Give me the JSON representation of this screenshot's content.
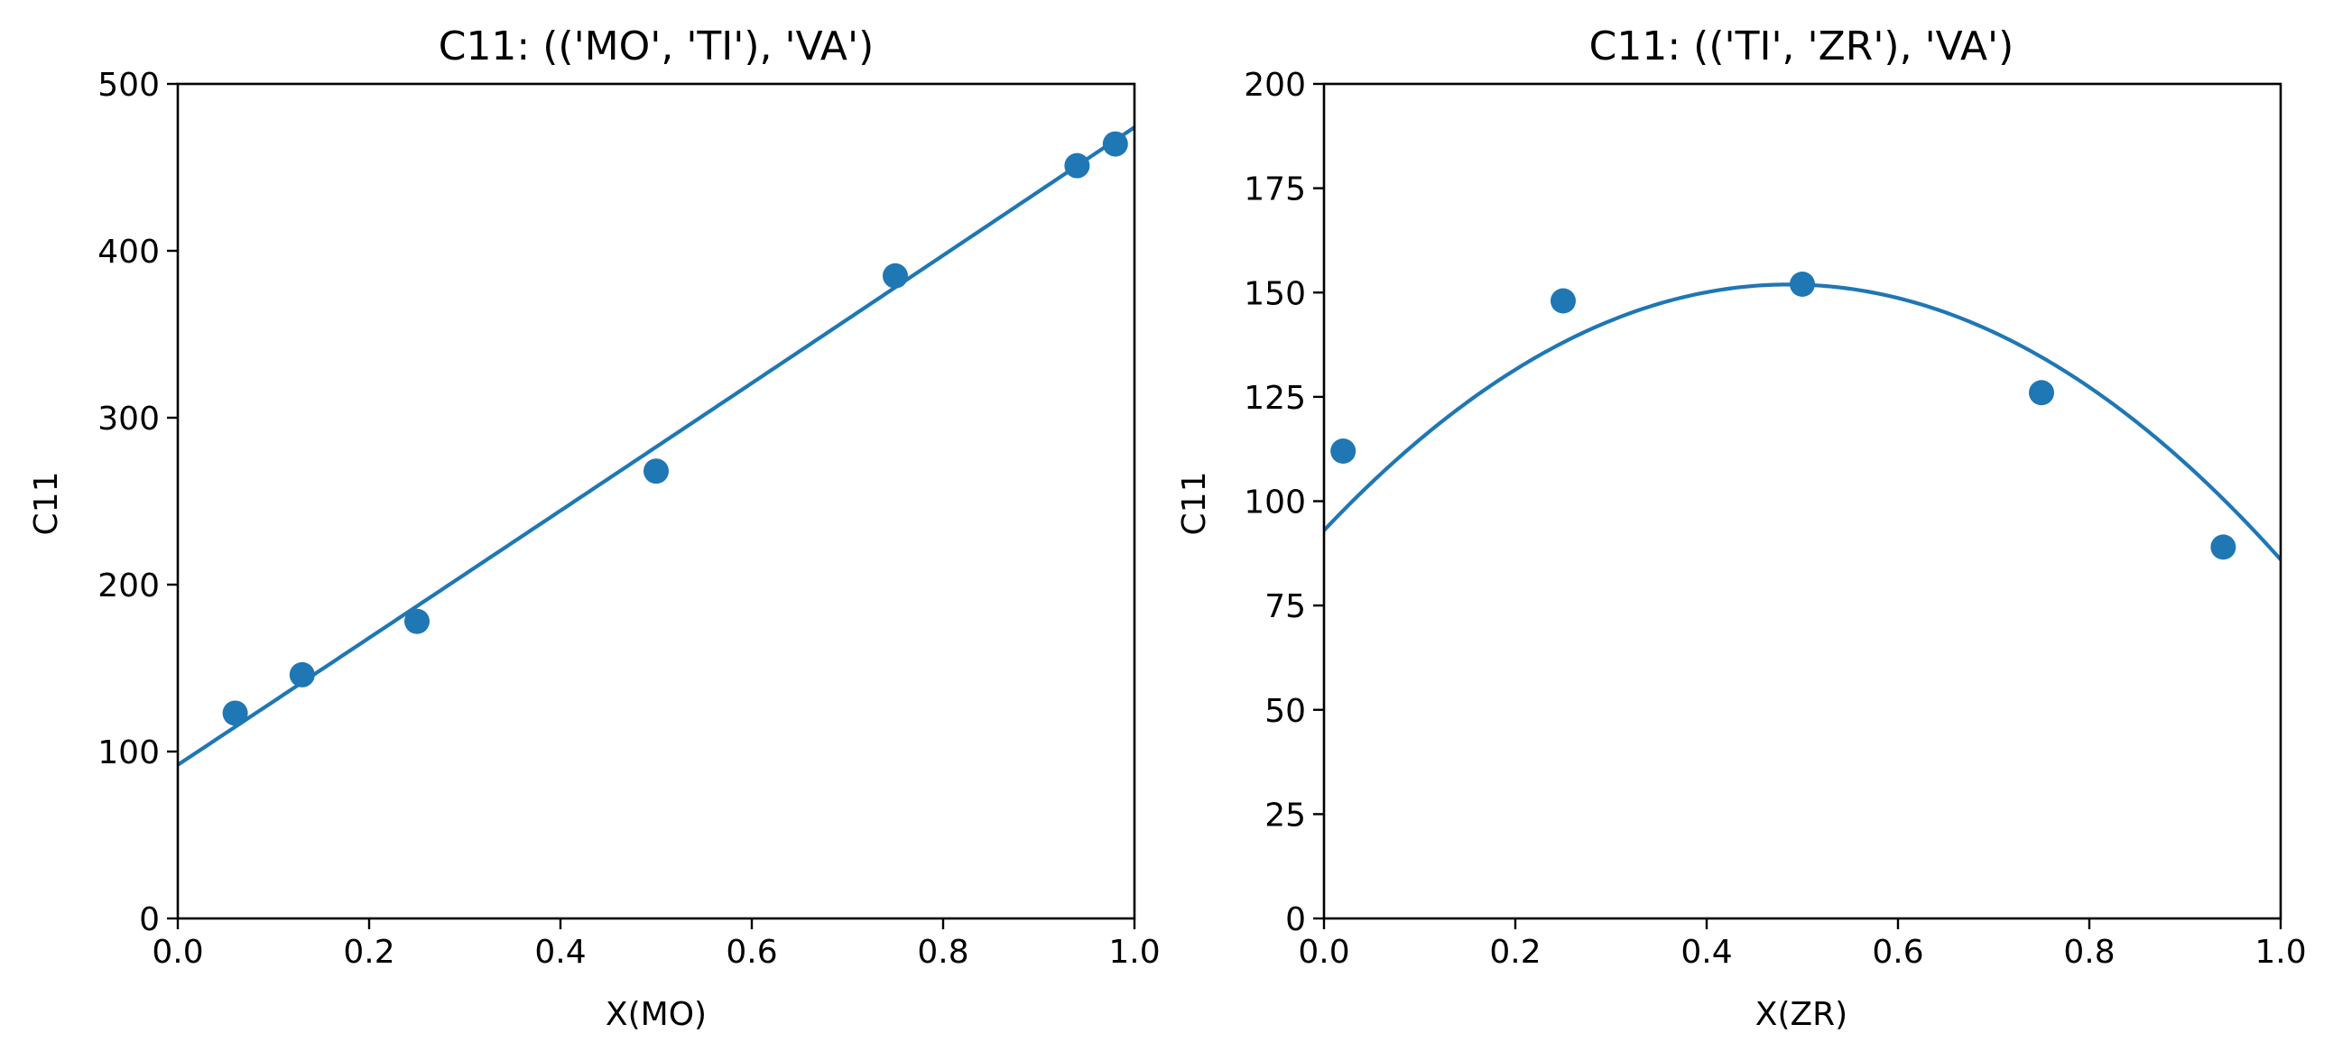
{
  "chart_data": [
    {
      "type": "scatter",
      "title": "C11: (('MO', 'TI'), 'VA')",
      "xlabel": "X(MO)",
      "ylabel": "C11",
      "xlim": [
        0.0,
        1.0
      ],
      "ylim": [
        0,
        500
      ],
      "xticks": [
        "0.0",
        "0.2",
        "0.4",
        "0.6",
        "0.8",
        "1.0"
      ],
      "yticks": [
        "0",
        "100",
        "200",
        "300",
        "400",
        "500"
      ],
      "grid": false,
      "color": "#1f77b4",
      "points": {
        "x": [
          0.06,
          0.13,
          0.25,
          0.5,
          0.75,
          0.94,
          0.98
        ],
        "y": [
          123,
          146,
          178,
          268,
          385,
          451,
          464
        ]
      },
      "fit": {
        "kind": "polynomial",
        "coefficients": [
          92,
          380,
          2
        ]
      }
    },
    {
      "type": "scatter",
      "title": "C11: (('TI', 'ZR'), 'VA')",
      "xlabel": "X(ZR)",
      "ylabel": "C11",
      "xlim": [
        0.0,
        1.0
      ],
      "ylim": [
        0,
        200
      ],
      "xticks": [
        "0.0",
        "0.2",
        "0.4",
        "0.6",
        "0.8",
        "1.0"
      ],
      "yticks": [
        "0",
        "25",
        "50",
        "75",
        "100",
        "125",
        "150",
        "175",
        "200"
      ],
      "grid": false,
      "color": "#1f77b4",
      "points": {
        "x": [
          0.02,
          0.25,
          0.5,
          0.75,
          0.94
        ],
        "y": [
          112,
          148,
          152,
          126,
          89
        ]
      },
      "fit": {
        "kind": "polynomial",
        "coefficients": [
          93,
          242.5,
          -249.5
        ]
      }
    }
  ]
}
